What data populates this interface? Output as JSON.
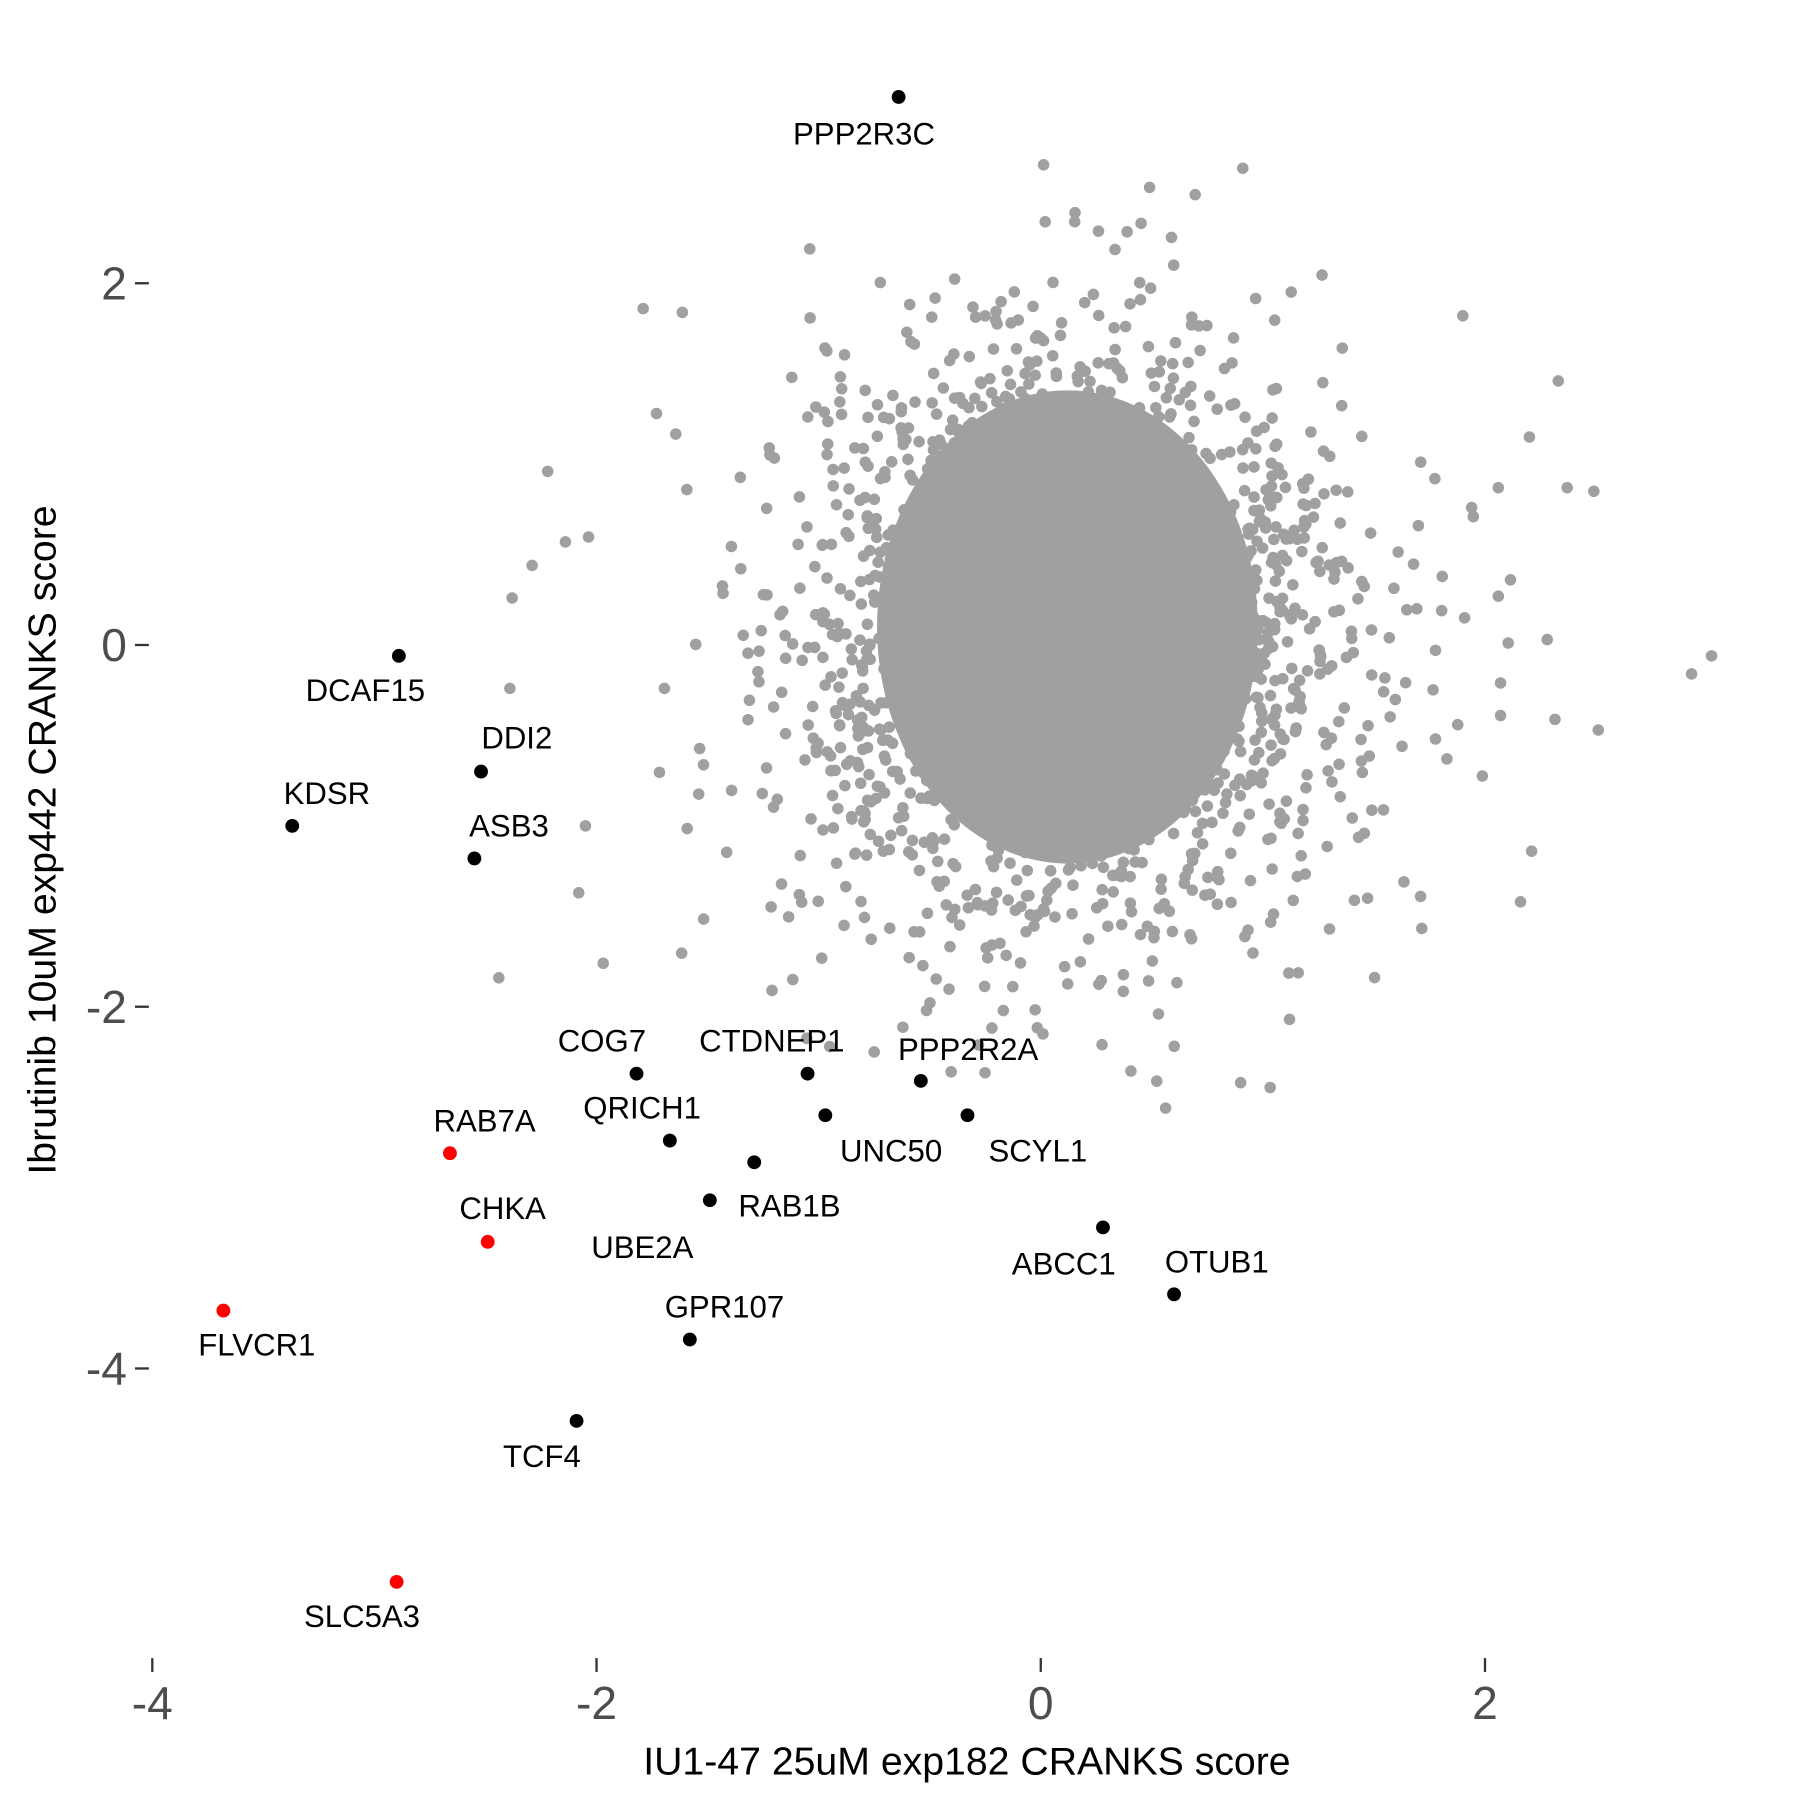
{
  "chart_data": {
    "type": "scatter",
    "title": "",
    "xlabel": "IU1-47 25uM exp182 CRANKS score",
    "ylabel": "Ibrutinib 10uM exp442 CRANKS score",
    "xlim": [
      -4,
      3.2
    ],
    "ylim": [
      -5.4,
      3.3
    ],
    "xticks": [
      -4,
      -2,
      0,
      2
    ],
    "yticks": [
      2,
      0,
      -2,
      -4
    ],
    "xtick_labels": [
      "-4",
      "-2",
      "0",
      "2"
    ],
    "ytick_labels": [
      "2",
      "0",
      "-2",
      "-4"
    ],
    "grid": false,
    "colors": {
      "background_points": "#a0a0a0",
      "highlight": "#000000",
      "red": "#ff0000"
    },
    "background_note_points": [
      [
        0.49,
        2.53
      ],
      [
        0.02,
        2.34
      ],
      [
        -1.04,
        2.19
      ],
      [
        -1.79,
        1.86
      ],
      [
        1.9,
        1.82
      ],
      [
        2.33,
        1.46
      ],
      [
        2.37,
        0.87
      ],
      [
        2.49,
        0.85
      ],
      [
        3.02,
        -0.06
      ],
      [
        2.93,
        -0.16
      ],
      [
        2.51,
        -0.47
      ],
      [
        2.21,
        -1.14
      ],
      [
        2.16,
        -1.42
      ],
      [
        1.71,
        -1.39
      ],
      [
        0.9,
        -2.42
      ],
      [
        0.53,
        -2.04
      ],
      [
        -2.22,
        0.96
      ],
      [
        -2.38,
        0.26
      ],
      [
        -2.44,
        -1.84
      ],
      [
        -2.39,
        -0.24
      ],
      [
        -1.97,
        -1.76
      ],
      [
        -1.73,
        1.28
      ],
      [
        2.06,
        0.87
      ],
      [
        2.2,
        1.15
      ],
      [
        2.28,
        0.03
      ],
      [
        2.07,
        -0.39
      ],
      [
        1.3,
        -1.57
      ],
      [
        1.12,
        -2.07
      ],
      [
        -1.21,
        -1.91
      ],
      [
        -0.95,
        -2.22
      ],
      [
        -0.75,
        -2.25
      ],
      [
        0.01,
        -2.15
      ],
      [
        -2.14,
        0.57
      ],
      [
        -2.29,
        0.44
      ],
      [
        -2.05,
        -1.0
      ],
      [
        -2.08,
        -1.37
      ],
      [
        1.7,
        0.66
      ],
      [
        1.94,
        0.76
      ],
      [
        2.06,
        0.27
      ],
      [
        2.07,
        -0.21
      ]
    ],
    "labeled_points": [
      {
        "label": "PPP2R3C",
        "x": -0.64,
        "y": 3.03,
        "color": "#000000"
      },
      {
        "label": "DCAF15",
        "x": -2.89,
        "y": -0.06,
        "color": "#000000"
      },
      {
        "label": "DDI2",
        "x": -2.52,
        "y": -0.7,
        "color": "#000000"
      },
      {
        "label": "KDSR",
        "x": -3.37,
        "y": -1.0,
        "color": "#000000"
      },
      {
        "label": "ASB3",
        "x": -2.55,
        "y": -1.18,
        "color": "#000000"
      },
      {
        "label": "COG7",
        "x": -1.82,
        "y": -2.37,
        "color": "#000000"
      },
      {
        "label": "CTDNEP1",
        "x": -1.05,
        "y": -2.37,
        "color": "#000000"
      },
      {
        "label": "PPP2R2A",
        "x": -0.54,
        "y": -2.41,
        "color": "#000000"
      },
      {
        "label": "UNC50",
        "x": -0.97,
        "y": -2.6,
        "color": "#000000"
      },
      {
        "label": "SCYL1",
        "x": -0.33,
        "y": -2.6,
        "color": "#000000"
      },
      {
        "label": "RAB7A",
        "x": -2.66,
        "y": -2.81,
        "color": "#ff0000"
      },
      {
        "label": "QRICH1",
        "x": -1.67,
        "y": -2.74,
        "color": "#000000"
      },
      {
        "label": "UBE2A",
        "x": -1.29,
        "y": -2.86,
        "color": "#000000"
      },
      {
        "label": "RAB1B",
        "x": -1.49,
        "y": -3.07,
        "color": "#000000"
      },
      {
        "label": "CHKA",
        "x": -2.49,
        "y": -3.3,
        "color": "#ff0000"
      },
      {
        "label": "ABCC1",
        "x": 0.28,
        "y": -3.22,
        "color": "#000000"
      },
      {
        "label": "OTUB1",
        "x": 0.6,
        "y": -3.59,
        "color": "#000000"
      },
      {
        "label": "FLVCR1",
        "x": -3.68,
        "y": -3.68,
        "color": "#ff0000"
      },
      {
        "label": "GPR107",
        "x": -1.58,
        "y": -3.84,
        "color": "#000000"
      },
      {
        "label": "TCF4",
        "x": -2.09,
        "y": -4.29,
        "color": "#000000"
      },
      {
        "label": "SLC5A3",
        "x": -2.9,
        "y": -5.18,
        "color": "#ff0000"
      }
    ]
  }
}
